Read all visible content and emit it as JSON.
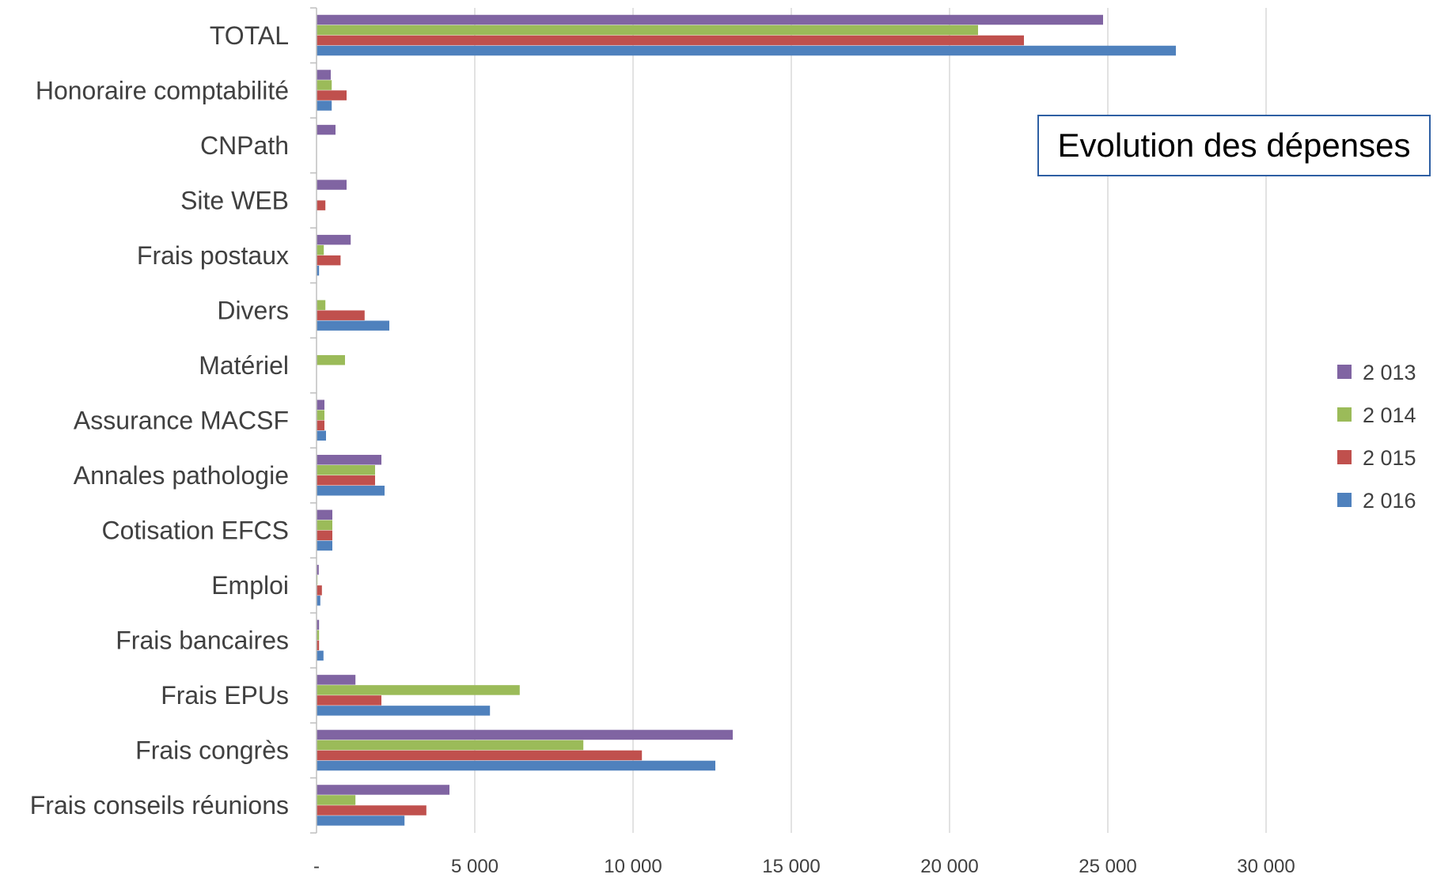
{
  "chart_data": {
    "type": "bar",
    "orientation": "horizontal",
    "title": "Evolution des dépenses",
    "categories": [
      "TOTAL",
      "Honoraire comptabilité",
      "CNPath",
      "Site WEB",
      "Frais postaux",
      "Divers",
      "Matériel",
      "Assurance MACSF",
      "Annales pathologie",
      "Cotisation EFCS",
      "Emploi",
      "Frais bancaires",
      "Frais EPUs",
      "Frais congrès",
      "Frais conseils  réunions"
    ],
    "series": [
      {
        "name": "2 013",
        "color": "#8064a2",
        "values": [
          24850,
          450,
          600,
          950,
          1080,
          0,
          0,
          250,
          2050,
          500,
          70,
          80,
          1230,
          13150,
          4200
        ]
      },
      {
        "name": "2 014",
        "color": "#9bbb59",
        "values": [
          20900,
          480,
          0,
          0,
          230,
          280,
          900,
          250,
          1850,
          500,
          30,
          80,
          6420,
          8430,
          1230
        ]
      },
      {
        "name": "2 015",
        "color": "#c0504d",
        "values": [
          22350,
          950,
          0,
          280,
          760,
          1520,
          0,
          250,
          1850,
          500,
          170,
          80,
          2050,
          10280,
          3470
        ]
      },
      {
        "name": "2 016",
        "color": "#4f81bd",
        "values": [
          27150,
          480,
          0,
          0,
          80,
          2300,
          0,
          300,
          2150,
          500,
          120,
          220,
          5480,
          12600,
          2780
        ]
      }
    ],
    "xaxis": {
      "ticks": [
        0,
        5000,
        10000,
        15000,
        20000,
        25000,
        30000
      ],
      "tick_labels": [
        "-",
        "5 000",
        "10 000",
        "15 000",
        "20 000",
        "25 000",
        "30 000"
      ],
      "xlim": [
        0,
        35000
      ]
    },
    "grid": "vertical",
    "legend_position": "right"
  }
}
